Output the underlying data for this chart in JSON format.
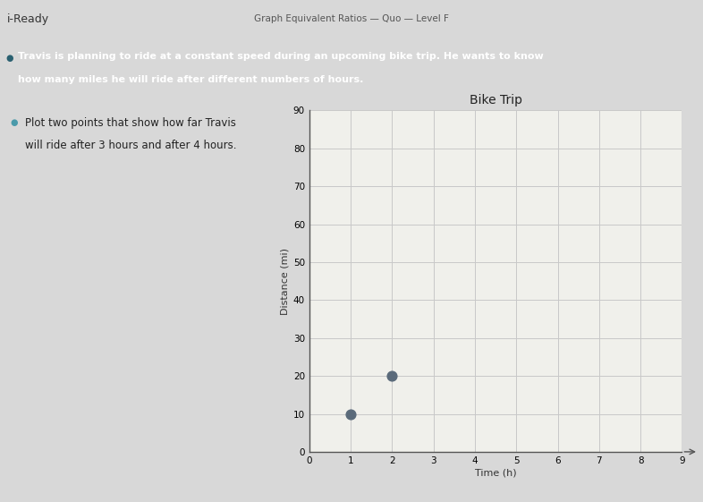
{
  "title": "Bike Trip",
  "xlabel": "Time (h)",
  "ylabel": "Distance (mi)",
  "points_x": [
    1,
    2
  ],
  "points_y": [
    10,
    20
  ],
  "point_color": "#5a6a7a",
  "point_size": 60,
  "xlim": [
    0,
    9
  ],
  "ylim": [
    0,
    90
  ],
  "xticks": [
    0,
    1,
    2,
    3,
    4,
    5,
    6,
    7,
    8,
    9
  ],
  "yticks": [
    0,
    10,
    20,
    30,
    40,
    50,
    60,
    70,
    80,
    90
  ],
  "grid_color": "#c8c8c8",
  "chart_bg": "#f0f0eb",
  "page_bg": "#d8d8d8",
  "white_bar_bg": "#f0f0f0",
  "teal_bar_bg": "#5aa0b0",
  "header_text": "Graph Equivalent Ratios — Quo — Level F",
  "brand_text": "i-Ready",
  "problem_text_line1": "Travis is planning to ride at a constant speed during an upcoming bike trip. He wants to know",
  "problem_text_line2": "how many miles he will ride after different numbers of hours.",
  "instruction_line1": "Plot two points that show how far Travis",
  "instruction_line2": "will ride after 3 hours and after 4 hours.",
  "title_fontsize": 10,
  "axis_label_fontsize": 8,
  "tick_fontsize": 7.5,
  "header_fontsize": 7.5,
  "brand_fontsize": 9,
  "problem_fontsize": 8,
  "instruction_fontsize": 8.5
}
